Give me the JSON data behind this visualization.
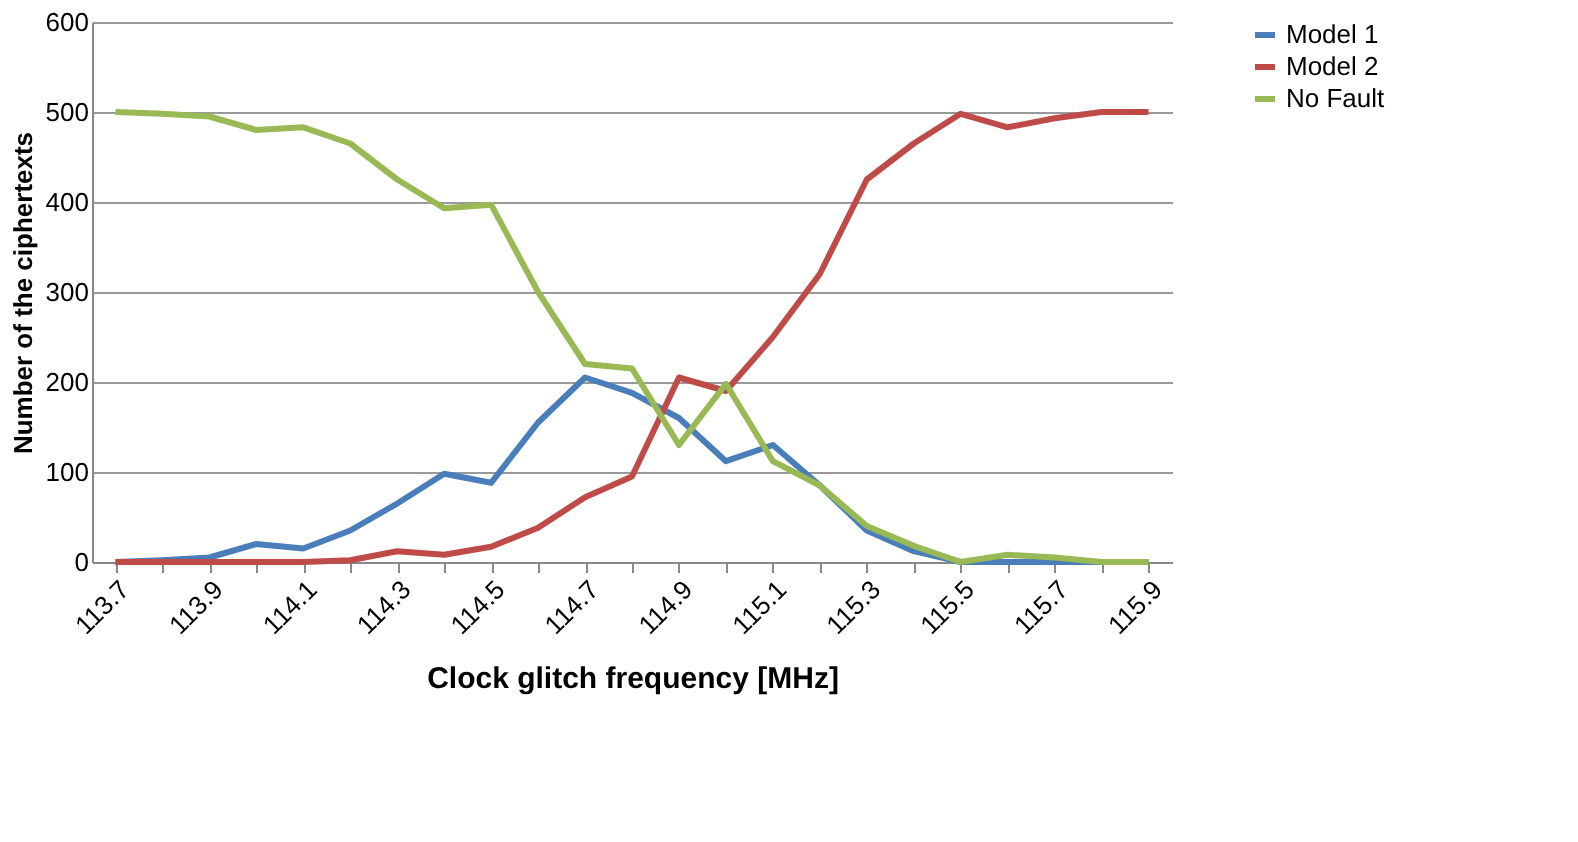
{
  "chart_data": {
    "type": "line",
    "xlabel": "Clock glitch frequency [MHz]",
    "ylabel": "Number of the ciphertexts",
    "categories": [
      "113.7",
      null,
      "113.9",
      null,
      "114.1",
      null,
      "114.3",
      null,
      "114.5",
      null,
      "114.7",
      null,
      "114.9",
      null,
      "115.1",
      null,
      "115.3",
      null,
      "115.5",
      null,
      "115.7",
      null,
      "115.9"
    ],
    "series": [
      {
        "name": "Model 1",
        "color": "#4a7ebb",
        "values": [
          0,
          2,
          5,
          20,
          15,
          35,
          65,
          98,
          88,
          155,
          205,
          188,
          160,
          112,
          130,
          85,
          35,
          12,
          0,
          0,
          0,
          0,
          0
        ]
      },
      {
        "name": "Model 2",
        "color": "#be4b48",
        "values": [
          0,
          0,
          0,
          0,
          0,
          2,
          12,
          8,
          17,
          38,
          72,
          95,
          205,
          190,
          250,
          320,
          425,
          465,
          498,
          483,
          493,
          500,
          500
        ]
      },
      {
        "name": "No Fault",
        "color": "#98b954",
        "values": [
          500,
          498,
          495,
          480,
          483,
          465,
          425,
          393,
          397,
          300,
          220,
          215,
          130,
          198,
          112,
          85,
          40,
          18,
          0,
          8,
          5,
          0,
          0
        ]
      }
    ],
    "ylim": [
      0,
      600
    ],
    "yticks": [
      0,
      100,
      200,
      300,
      400,
      500,
      600
    ],
    "grid": "y",
    "legend": "right",
    "marker": "none",
    "line_style": "solid"
  }
}
